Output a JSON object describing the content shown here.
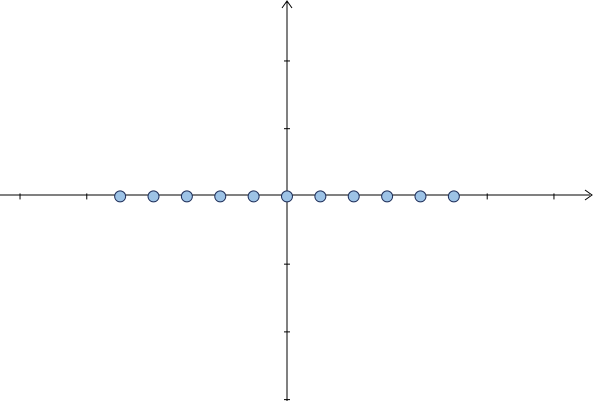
{
  "diagram": {
    "type": "number-line-points",
    "x_axis": {
      "tick_values": [
        -8,
        -6,
        -4,
        -2,
        0,
        2,
        4,
        6,
        8
      ],
      "range": [
        -8.6,
        9.2
      ]
    },
    "y_axis": {
      "tick_values": [
        -6,
        -4,
        -2,
        0,
        2,
        4
      ],
      "range": [
        -6.1,
        5.8
      ]
    },
    "points": [
      {
        "x": -5,
        "y": 0
      },
      {
        "x": -4,
        "y": 0
      },
      {
        "x": -3,
        "y": 0
      },
      {
        "x": -2,
        "y": 0
      },
      {
        "x": -1,
        "y": 0
      },
      {
        "x": 0,
        "y": 0
      },
      {
        "x": 1,
        "y": 0
      },
      {
        "x": 2,
        "y": 0
      },
      {
        "x": 3,
        "y": 0
      },
      {
        "x": 4,
        "y": 0
      },
      {
        "x": 5,
        "y": 0
      }
    ],
    "colors": {
      "axis": "#000000",
      "point_fill": "#9dc3e6",
      "point_stroke": "#1f2f5a"
    }
  }
}
